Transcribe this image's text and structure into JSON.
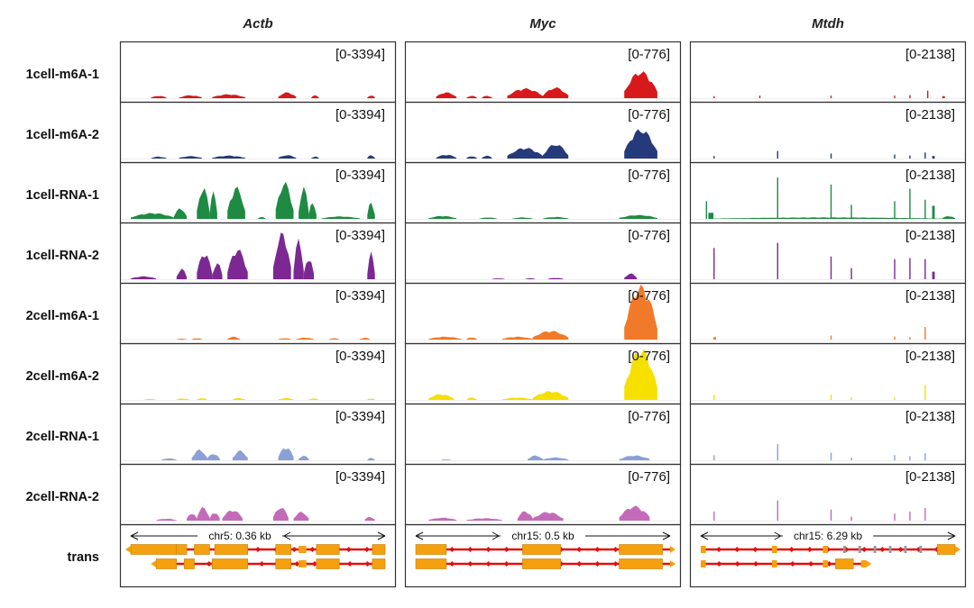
{
  "chart_data": {
    "type": "area",
    "genes": [
      {
        "name": "Actb",
        "range": "[0-3394]",
        "scale": "chr5: 0.36 kb",
        "scale_dir": "left",
        "ymax": 3394
      },
      {
        "name": "Myc",
        "range": "[0-776]",
        "scale": "chr15: 0.5 kb",
        "scale_dir": "right",
        "ymax": 776
      },
      {
        "name": "Mtdh",
        "range": "[0-2138]",
        "scale": "chr15: 6.29 kb",
        "scale_dir": "right",
        "ymax": 2138
      }
    ],
    "tracks": [
      {
        "name": "1cell-m6A-1",
        "color": "#d7191c"
      },
      {
        "name": "1cell-m6A-2",
        "color": "#253a7a"
      },
      {
        "name": "1cell-RNA-1",
        "color": "#1e8a43"
      },
      {
        "name": "1cell-RNA-2",
        "color": "#7b2893"
      },
      {
        "name": "2cell-m6A-1",
        "color": "#f07a2a"
      },
      {
        "name": "2cell-m6A-2",
        "color": "#f5e000"
      },
      {
        "name": "2cell-RNA-1",
        "color": "#8aa0d6"
      },
      {
        "name": "2cell-RNA-2",
        "color": "#c36bb8"
      }
    ],
    "trans_label": "trans",
    "coverage": {
      "Actb": [
        [
          [
            0.08,
            0.14,
            0.05
          ],
          [
            0.19,
            0.28,
            0.06
          ],
          [
            0.32,
            0.45,
            0.08
          ],
          [
            0.58,
            0.65,
            0.12
          ],
          [
            0.71,
            0.74,
            0.06
          ],
          [
            0.93,
            0.96,
            0.06
          ]
        ],
        [
          [
            0.08,
            0.14,
            0.04
          ],
          [
            0.19,
            0.28,
            0.05
          ],
          [
            0.32,
            0.45,
            0.06
          ],
          [
            0.58,
            0.65,
            0.07
          ],
          [
            0.71,
            0.74,
            0.04
          ],
          [
            0.93,
            0.96,
            0.07
          ]
        ],
        [
          [
            0.0,
            0.17,
            0.12
          ],
          [
            0.17,
            0.22,
            0.22
          ],
          [
            0.26,
            0.31,
            0.65
          ],
          [
            0.31,
            0.34,
            0.55
          ],
          [
            0.38,
            0.45,
            0.65
          ],
          [
            0.5,
            0.53,
            0.04
          ],
          [
            0.57,
            0.64,
            0.75
          ],
          [
            0.66,
            0.7,
            0.65
          ],
          [
            0.7,
            0.73,
            0.35
          ],
          [
            0.75,
            0.9,
            0.05
          ],
          [
            0.93,
            0.96,
            0.35
          ]
        ],
        [
          [
            0.0,
            0.1,
            0.06
          ],
          [
            0.18,
            0.22,
            0.22
          ],
          [
            0.26,
            0.32,
            0.55
          ],
          [
            0.32,
            0.36,
            0.35
          ],
          [
            0.38,
            0.46,
            0.62
          ],
          [
            0.56,
            0.63,
            0.95
          ],
          [
            0.64,
            0.68,
            0.82
          ],
          [
            0.68,
            0.72,
            0.45
          ],
          [
            0.93,
            0.96,
            0.55
          ]
        ],
        [
          [
            0.18,
            0.22,
            0.02
          ],
          [
            0.24,
            0.28,
            0.03
          ],
          [
            0.38,
            0.43,
            0.06
          ],
          [
            0.58,
            0.63,
            0.03
          ],
          [
            0.65,
            0.72,
            0.04
          ],
          [
            0.78,
            0.82,
            0.03
          ],
          [
            0.9,
            0.94,
            0.04
          ]
        ],
        [
          [
            0.05,
            0.1,
            0.02
          ],
          [
            0.18,
            0.23,
            0.03
          ],
          [
            0.26,
            0.3,
            0.04
          ],
          [
            0.4,
            0.45,
            0.04
          ],
          [
            0.58,
            0.64,
            0.04
          ],
          [
            0.7,
            0.74,
            0.03
          ],
          [
            0.93,
            0.96,
            0.03
          ]
        ],
        [
          [
            0.12,
            0.18,
            0.04
          ],
          [
            0.24,
            0.3,
            0.22
          ],
          [
            0.3,
            0.35,
            0.14
          ],
          [
            0.4,
            0.46,
            0.2
          ],
          [
            0.58,
            0.64,
            0.28
          ],
          [
            0.66,
            0.7,
            0.1
          ],
          [
            0.93,
            0.96,
            0.05
          ]
        ],
        [
          [
            0.1,
            0.18,
            0.04
          ],
          [
            0.22,
            0.26,
            0.16
          ],
          [
            0.26,
            0.31,
            0.28
          ],
          [
            0.31,
            0.35,
            0.18
          ],
          [
            0.36,
            0.44,
            0.22
          ],
          [
            0.56,
            0.62,
            0.28
          ],
          [
            0.64,
            0.7,
            0.18
          ],
          [
            0.92,
            0.96,
            0.08
          ]
        ]
      ],
      "Myc": [
        [
          [
            0.08,
            0.16,
            0.12
          ],
          [
            0.2,
            0.24,
            0.05
          ],
          [
            0.26,
            0.3,
            0.05
          ],
          [
            0.36,
            0.5,
            0.2
          ],
          [
            0.5,
            0.6,
            0.22
          ],
          [
            0.82,
            0.95,
            0.55
          ]
        ],
        [
          [
            0.08,
            0.16,
            0.08
          ],
          [
            0.2,
            0.24,
            0.05
          ],
          [
            0.26,
            0.3,
            0.06
          ],
          [
            0.36,
            0.5,
            0.22
          ],
          [
            0.5,
            0.6,
            0.3
          ],
          [
            0.82,
            0.95,
            0.6
          ]
        ],
        [
          [
            0.05,
            0.16,
            0.06
          ],
          [
            0.25,
            0.32,
            0.03
          ],
          [
            0.38,
            0.46,
            0.03
          ],
          [
            0.5,
            0.6,
            0.04
          ],
          [
            0.8,
            0.95,
            0.08
          ]
        ],
        [
          [
            0.3,
            0.35,
            0.02
          ],
          [
            0.43,
            0.47,
            0.02
          ],
          [
            0.52,
            0.58,
            0.03
          ],
          [
            0.82,
            0.87,
            0.12
          ]
        ],
        [
          [
            0.05,
            0.18,
            0.06
          ],
          [
            0.2,
            0.24,
            0.05
          ],
          [
            0.34,
            0.46,
            0.06
          ],
          [
            0.46,
            0.6,
            0.18
          ],
          [
            0.82,
            0.95,
            1.1
          ]
        ],
        [
          [
            0.05,
            0.15,
            0.12
          ],
          [
            0.2,
            0.24,
            0.05
          ],
          [
            0.34,
            0.46,
            0.05
          ],
          [
            0.46,
            0.6,
            0.18
          ],
          [
            0.82,
            0.95,
            1.05
          ]
        ],
        [
          [
            0.1,
            0.14,
            0.02
          ],
          [
            0.44,
            0.5,
            0.1
          ],
          [
            0.5,
            0.6,
            0.06
          ],
          [
            0.8,
            0.92,
            0.1
          ]
        ],
        [
          [
            0.05,
            0.16,
            0.06
          ],
          [
            0.2,
            0.34,
            0.05
          ],
          [
            0.4,
            0.46,
            0.2
          ],
          [
            0.46,
            0.58,
            0.18
          ],
          [
            0.8,
            0.92,
            0.3
          ]
        ]
      ],
      "Mtdh": [
        [
          [
            0.05,
            0.055,
            0.04
          ],
          [
            0.23,
            0.235,
            0.05
          ],
          [
            0.51,
            0.515,
            0.05
          ],
          [
            0.76,
            0.765,
            0.05
          ],
          [
            0.82,
            0.825,
            0.06
          ],
          [
            0.89,
            0.895,
            0.15
          ],
          [
            0.95,
            0.96,
            0.04
          ]
        ],
        [
          [
            0.05,
            0.055,
            0.05
          ],
          [
            0.3,
            0.305,
            0.15
          ],
          [
            0.51,
            0.515,
            0.1
          ],
          [
            0.76,
            0.765,
            0.08
          ],
          [
            0.82,
            0.825,
            0.06
          ],
          [
            0.88,
            0.885,
            0.12
          ],
          [
            0.91,
            0.92,
            0.05
          ]
        ],
        [
          [
            0.02,
            0.025,
            0.35
          ],
          [
            0.03,
            0.05,
            0.12
          ],
          [
            0.05,
            0.95,
            0.03
          ],
          [
            0.3,
            0.305,
            0.82
          ],
          [
            0.51,
            0.515,
            0.68
          ],
          [
            0.59,
            0.595,
            0.28
          ],
          [
            0.76,
            0.765,
            0.35
          ],
          [
            0.82,
            0.825,
            0.6
          ],
          [
            0.88,
            0.885,
            0.38
          ],
          [
            0.91,
            0.92,
            0.26
          ],
          [
            0.95,
            1.0,
            0.06
          ]
        ],
        [
          [
            0.05,
            0.055,
            0.62
          ],
          [
            0.3,
            0.305,
            0.72
          ],
          [
            0.51,
            0.515,
            0.45
          ],
          [
            0.59,
            0.595,
            0.22
          ],
          [
            0.76,
            0.765,
            0.4
          ],
          [
            0.82,
            0.825,
            0.42
          ],
          [
            0.88,
            0.885,
            0.4
          ],
          [
            0.91,
            0.92,
            0.15
          ]
        ],
        [
          [
            0.05,
            0.06,
            0.05
          ],
          [
            0.51,
            0.515,
            0.08
          ],
          [
            0.76,
            0.765,
            0.06
          ],
          [
            0.88,
            0.885,
            0.25
          ],
          [
            0.82,
            0.825,
            0.05
          ]
        ],
        [
          [
            0.05,
            0.055,
            0.1
          ],
          [
            0.51,
            0.515,
            0.1
          ],
          [
            0.59,
            0.595,
            0.05
          ],
          [
            0.76,
            0.765,
            0.05
          ],
          [
            0.88,
            0.885,
            0.3
          ]
        ],
        [
          [
            0.05,
            0.055,
            0.1
          ],
          [
            0.3,
            0.305,
            0.32
          ],
          [
            0.51,
            0.515,
            0.15
          ],
          [
            0.59,
            0.595,
            0.05
          ],
          [
            0.76,
            0.765,
            0.1
          ],
          [
            0.82,
            0.825,
            0.08
          ],
          [
            0.88,
            0.885,
            0.14
          ]
        ],
        [
          [
            0.05,
            0.055,
            0.18
          ],
          [
            0.3,
            0.305,
            0.4
          ],
          [
            0.51,
            0.515,
            0.22
          ],
          [
            0.59,
            0.595,
            0.08
          ],
          [
            0.76,
            0.765,
            0.14
          ],
          [
            0.82,
            0.825,
            0.18
          ],
          [
            0.88,
            0.885,
            0.25
          ]
        ]
      ]
    },
    "transcripts": {
      "Actb": [
        {
          "span": [
            0.0,
            1.0
          ],
          "dir": "left",
          "exons": [
            [
              0.0,
              0.18
            ],
            [
              0.18,
              0.22
            ],
            [
              0.25,
              0.31
            ],
            [
              0.33,
              0.46
            ],
            [
              0.57,
              0.63
            ],
            [
              0.66,
              0.69
            ],
            [
              0.73,
              0.82
            ],
            [
              0.95,
              1.0
            ]
          ]
        },
        {
          "span": [
            0.1,
            1.0
          ],
          "dir": "left",
          "exons": [
            [
              0.1,
              0.18
            ],
            [
              0.21,
              0.25
            ],
            [
              0.32,
              0.46
            ],
            [
              0.57,
              0.63
            ],
            [
              0.66,
              0.69
            ],
            [
              0.73,
              0.82
            ],
            [
              0.95,
              1.0
            ]
          ]
        }
      ],
      "Myc": [
        {
          "span": [
            0.0,
            1.0
          ],
          "dir": "right",
          "exons": [
            [
              0.0,
              0.12
            ],
            [
              0.42,
              0.57
            ],
            [
              0.8,
              0.97
            ]
          ]
        },
        {
          "span": [
            0.0,
            1.0
          ],
          "dir": "right",
          "exons": [
            [
              0.0,
              0.12
            ],
            [
              0.42,
              0.57
            ],
            [
              0.8,
              0.97
            ]
          ]
        }
      ],
      "Mtdh": [
        {
          "span": [
            0.0,
            1.0
          ],
          "dir": "right",
          "exons": [
            [
              0.0,
              0.02
            ],
            [
              0.28,
              0.3
            ],
            [
              0.48,
              0.5
            ],
            [
              0.56,
              0.57
            ],
            [
              0.62,
              0.63
            ],
            [
              0.68,
              0.69
            ],
            [
              0.74,
              0.75
            ],
            [
              0.8,
              0.81
            ],
            [
              0.86,
              0.87
            ],
            [
              0.93,
              1.0
            ]
          ]
        },
        {
          "span": [
            0.0,
            0.65
          ],
          "dir": "right",
          "exons": [
            [
              0.0,
              0.02
            ],
            [
              0.28,
              0.3
            ],
            [
              0.48,
              0.5
            ],
            [
              0.53,
              0.6
            ],
            [
              0.63,
              0.65
            ]
          ]
        }
      ]
    }
  }
}
